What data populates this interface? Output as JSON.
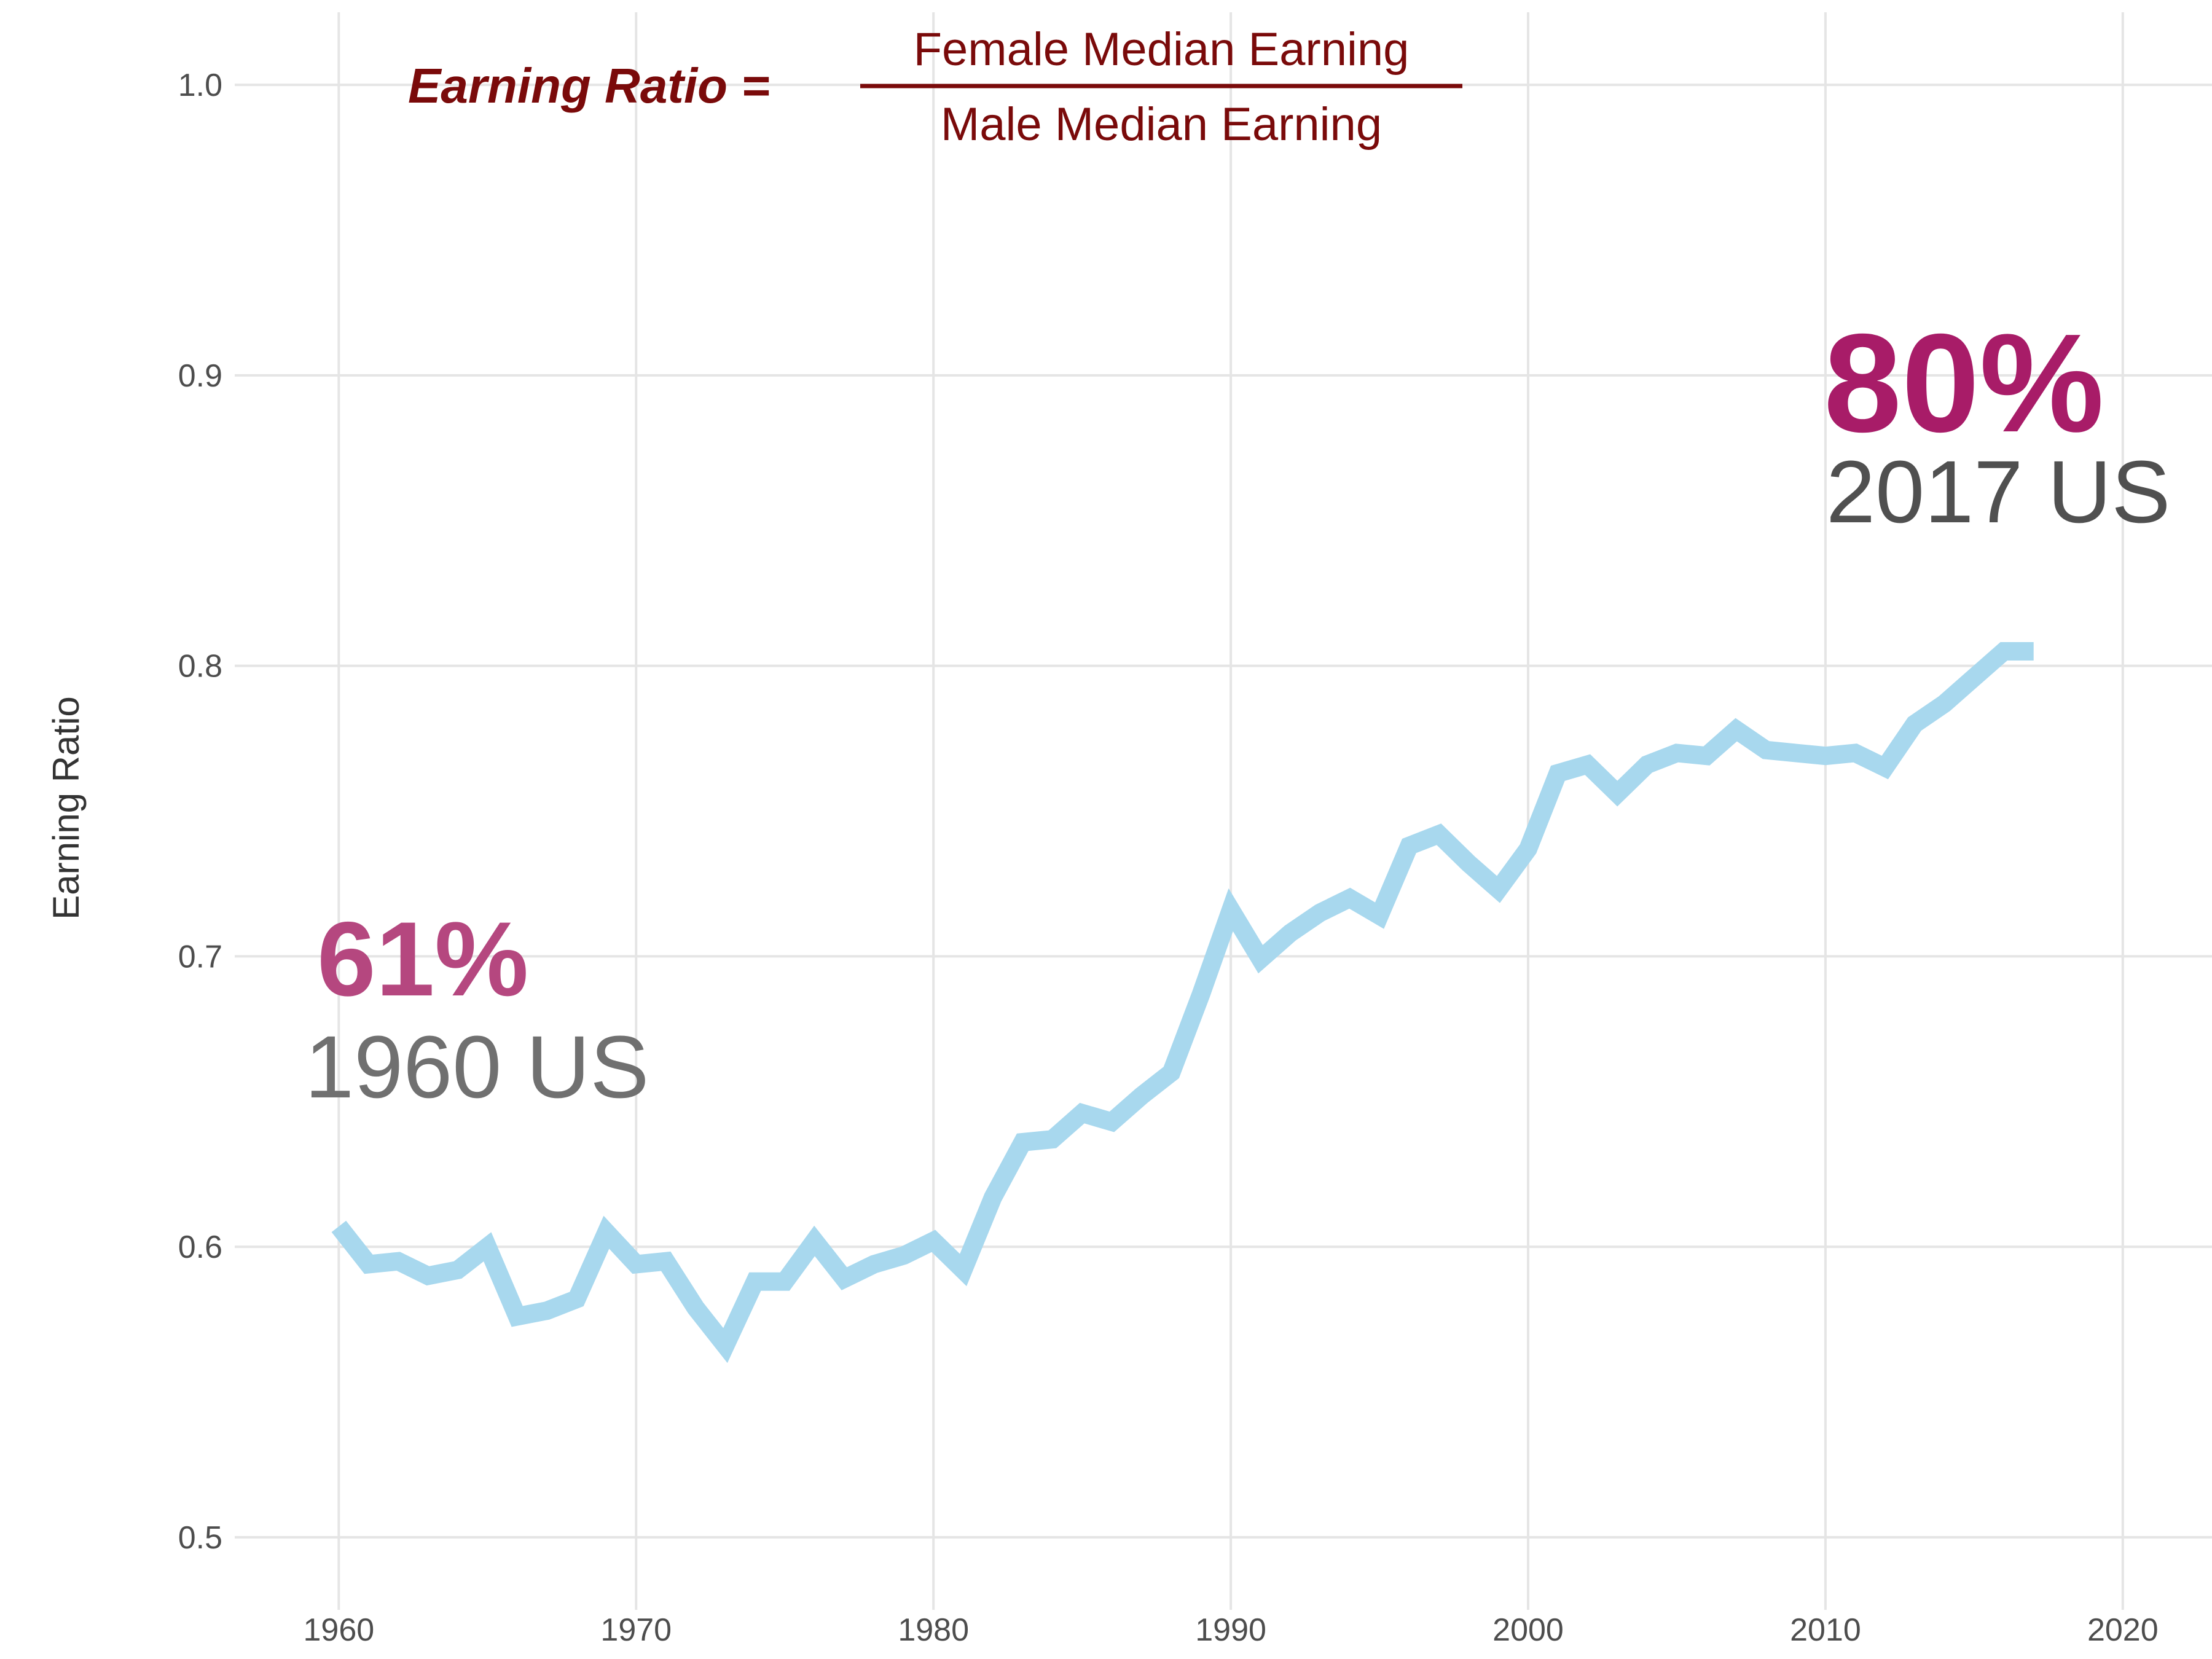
{
  "chart_data": {
    "type": "line",
    "title": "",
    "xlabel": "",
    "ylabel": "Earning Ratio",
    "xlim": [
      1956.5,
      2023
    ],
    "ylim": [
      0.475,
      1.025
    ],
    "grid": true,
    "x_ticks": [
      "1960",
      "1970",
      "1980",
      "1990",
      "2000",
      "2010",
      "2020"
    ],
    "y_ticks": [
      "0.5",
      "0.6",
      "0.7",
      "0.8",
      "0.9",
      "1.0"
    ],
    "series": [
      {
        "color": "#a8d8ee",
        "x": [
          1960,
          1961,
          1962,
          1963,
          1964,
          1965,
          1966,
          1967,
          1968,
          1969,
          1970,
          1971,
          1972,
          1973,
          1974,
          1975,
          1976,
          1977,
          1978,
          1979,
          1980,
          1981,
          1982,
          1983,
          1984,
          1985,
          1986,
          1987,
          1988,
          1989,
          1990,
          1991,
          1992,
          1993,
          1994,
          1995,
          1996,
          1997,
          1998,
          1999,
          2000,
          2001,
          2002,
          2003,
          2004,
          2005,
          2006,
          2007,
          2008,
          2009,
          2010,
          2011,
          2012,
          2013,
          2014,
          2015,
          2016,
          2017
        ],
        "y": [
          0.607,
          0.594,
          0.595,
          0.59,
          0.592,
          0.6,
          0.576,
          0.578,
          0.582,
          0.605,
          0.594,
          0.595,
          0.579,
          0.566,
          0.588,
          0.588,
          0.602,
          0.589,
          0.594,
          0.597,
          0.602,
          0.592,
          0.617,
          0.636,
          0.637,
          0.646,
          0.643,
          0.652,
          0.66,
          0.687,
          0.716,
          0.699,
          0.708,
          0.715,
          0.72,
          0.714,
          0.738,
          0.742,
          0.732,
          0.723,
          0.737,
          0.763,
          0.766,
          0.756,
          0.766,
          0.77,
          0.769,
          0.778,
          0.771,
          0.77,
          0.769,
          0.77,
          0.765,
          0.78,
          0.787,
          0.796,
          0.805,
          0.805
        ]
      }
    ],
    "annotations": [
      {
        "value": "61%",
        "label": "1960 US",
        "value_color": "#b5477f",
        "label_color": "#707070"
      },
      {
        "value": "80%",
        "label": "2017 US",
        "value_color": "#a81c68",
        "label_color": "#505050"
      }
    ],
    "formula": {
      "lhs": "Earning Ratio =",
      "numerator": "Female Median Earning",
      "denominator": "Male Median Earning",
      "color": "#7a0a0a"
    }
  }
}
